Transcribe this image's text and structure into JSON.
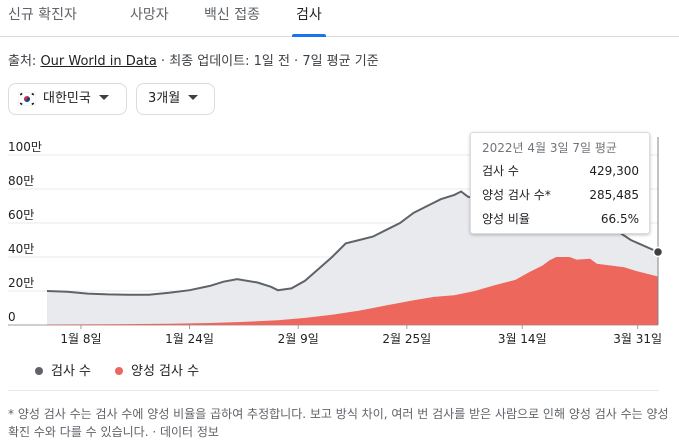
{
  "tabs": [
    {
      "label": "신규 확진자",
      "active": false
    },
    {
      "label": "사망자",
      "active": false
    },
    {
      "label": "백신 접종",
      "active": false
    },
    {
      "label": "검사",
      "active": true
    }
  ],
  "source": {
    "prefix": "출처: ",
    "link_text": "Our World in Data",
    "suffix": " · 최종 업데이트: 1일 전 · 7일 평균 기준"
  },
  "filters": {
    "country": "대한민국",
    "range": "3개월"
  },
  "tooltip": {
    "title": "2022년 4월 3일 7일 평균",
    "rows": [
      {
        "label": "검사 수",
        "value": "429,300"
      },
      {
        "label": "양성 검사 수*",
        "value": "285,485"
      },
      {
        "label": "양성 비율",
        "value": "66.5%"
      }
    ]
  },
  "legend": {
    "tests": "검사 수",
    "positive": "양성 검사 수"
  },
  "footnote": "* 양성 검사 수는 검사 수에 양성 비율을 곱하여 추정합니다. 보고 방식 차이, 여러 번 검사를 받은 사람으로 인해 양성 검사 수는 양성 확진 수와 다를 수 있습니다. · 데이터 정보",
  "colors": {
    "tests_line": "#5f6368",
    "tests_fill": "#e8eaed",
    "positive_fill": "#ee675c",
    "accent": "#1a73e8"
  },
  "chart_data": {
    "type": "area",
    "ylim": [
      0,
      1000000
    ],
    "y_ticks": [
      {
        "value": 0,
        "label": "0"
      },
      {
        "value": 200000,
        "label": "20만"
      },
      {
        "value": 400000,
        "label": "40만"
      },
      {
        "value": 600000,
        "label": "60만"
      },
      {
        "value": 800000,
        "label": "80만"
      },
      {
        "value": 1000000,
        "label": "100만"
      }
    ],
    "x_ticks": [
      {
        "x": "2022-01-08",
        "label": "1월 8일"
      },
      {
        "x": "2022-01-24",
        "label": "1월 24일"
      },
      {
        "x": "2022-02-09",
        "label": "2월 9일"
      },
      {
        "x": "2022-02-25",
        "label": "2월 25일"
      },
      {
        "x": "2022-03-14",
        "label": "3월 14일"
      },
      {
        "x": "2022-03-31",
        "label": "3월 31일"
      }
    ],
    "x_range": [
      "2022-01-03",
      "2022-04-03"
    ],
    "highlighted_x": "2022-04-03",
    "series": [
      {
        "name": "검사 수",
        "points": [
          [
            "2022-01-03",
            200000
          ],
          [
            "2022-01-06",
            195000
          ],
          [
            "2022-01-09",
            185000
          ],
          [
            "2022-01-12",
            180000
          ],
          [
            "2022-01-15",
            178000
          ],
          [
            "2022-01-18",
            178000
          ],
          [
            "2022-01-21",
            190000
          ],
          [
            "2022-01-24",
            205000
          ],
          [
            "2022-01-27",
            230000
          ],
          [
            "2022-01-29",
            255000
          ],
          [
            "2022-01-31",
            270000
          ],
          [
            "2022-02-03",
            250000
          ],
          [
            "2022-02-05",
            225000
          ],
          [
            "2022-02-06",
            205000
          ],
          [
            "2022-02-08",
            215000
          ],
          [
            "2022-02-10",
            260000
          ],
          [
            "2022-02-12",
            330000
          ],
          [
            "2022-02-14",
            400000
          ],
          [
            "2022-02-16",
            480000
          ],
          [
            "2022-02-18",
            500000
          ],
          [
            "2022-02-20",
            520000
          ],
          [
            "2022-02-22",
            560000
          ],
          [
            "2022-02-24",
            600000
          ],
          [
            "2022-02-26",
            660000
          ],
          [
            "2022-02-28",
            700000
          ],
          [
            "2022-03-02",
            740000
          ],
          [
            "2022-03-04",
            765000
          ],
          [
            "2022-03-05",
            785000
          ],
          [
            "2022-03-06",
            755000
          ],
          [
            "2022-03-07",
            745000
          ],
          [
            "2022-03-09",
            745000
          ],
          [
            "2022-03-11",
            750000
          ],
          [
            "2022-03-13",
            750000
          ],
          [
            "2022-03-15",
            755000
          ],
          [
            "2022-03-18",
            750000
          ],
          [
            "2022-03-21",
            720000
          ],
          [
            "2022-03-24",
            660000
          ],
          [
            "2022-03-27",
            580000
          ],
          [
            "2022-03-30",
            500000
          ],
          [
            "2022-04-03",
            429300
          ]
        ]
      },
      {
        "name": "양성 검사 수",
        "points": [
          [
            "2022-01-03",
            3000
          ],
          [
            "2022-01-12",
            4000
          ],
          [
            "2022-01-21",
            7000
          ],
          [
            "2022-01-27",
            12000
          ],
          [
            "2022-02-01",
            18000
          ],
          [
            "2022-02-06",
            28000
          ],
          [
            "2022-02-10",
            42000
          ],
          [
            "2022-02-14",
            60000
          ],
          [
            "2022-02-18",
            85000
          ],
          [
            "2022-02-22",
            115000
          ],
          [
            "2022-02-26",
            145000
          ],
          [
            "2022-03-01",
            165000
          ],
          [
            "2022-03-04",
            175000
          ],
          [
            "2022-03-07",
            200000
          ],
          [
            "2022-03-10",
            235000
          ],
          [
            "2022-03-13",
            265000
          ],
          [
            "2022-03-15",
            310000
          ],
          [
            "2022-03-17",
            350000
          ],
          [
            "2022-03-18",
            380000
          ],
          [
            "2022-03-19",
            400000
          ],
          [
            "2022-03-21",
            400000
          ],
          [
            "2022-03-22",
            385000
          ],
          [
            "2022-03-24",
            390000
          ],
          [
            "2022-03-25",
            360000
          ],
          [
            "2022-03-27",
            350000
          ],
          [
            "2022-03-29",
            340000
          ],
          [
            "2022-03-31",
            315000
          ],
          [
            "2022-04-03",
            285485
          ]
        ]
      }
    ]
  }
}
